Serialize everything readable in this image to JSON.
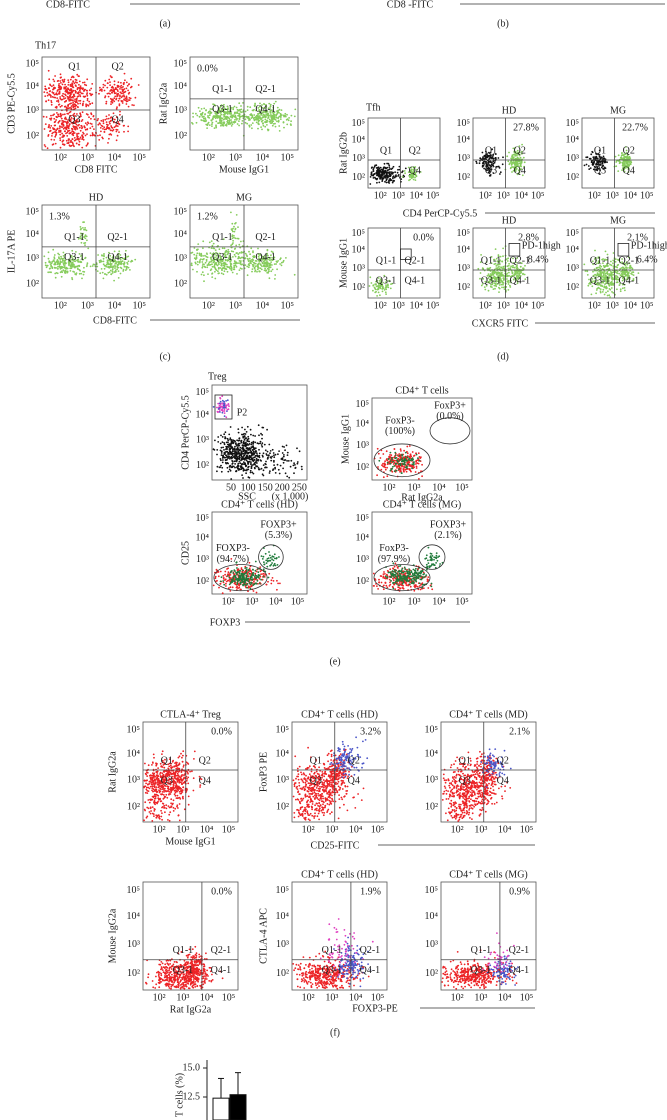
{
  "top": {
    "left_axis": "CD8-FITC",
    "right_axis": "CD8 -FITC",
    "left_label": "(a)",
    "right_label": "(b)"
  },
  "log_ticks": [
    "10²",
    "10³",
    "10⁴",
    "10⁵"
  ],
  "panel_c": {
    "title": "Th17",
    "x_label": "CD8-FITC",
    "label": "(c)",
    "plots": [
      {
        "y_label": "CD3 PE-Cy5.5",
        "x_label": "CD8 FITC",
        "quadrants": {
          "q1": "Q1",
          "q2": "Q2",
          "q3": "Q3",
          "q4": "Q4"
        }
      },
      {
        "y_label": "Rat IgG2a",
        "x_label": "Mouse IgG1",
        "percent": "0.0%",
        "quadrants": {
          "q1": "Q1-1",
          "q2": "Q2-1",
          "q3": "Q3-1",
          "q4": "Q4-1"
        }
      },
      {
        "title": "HD",
        "y_label": "IL-17A PE",
        "percent": "1.3%",
        "quadrants": {
          "q1": "Q1-1",
          "q2": "Q2-1",
          "q3": "Q3-1",
          "q4": "Q4-1"
        }
      },
      {
        "title": "MG",
        "percent": "1.2%",
        "quadrants": {
          "q1": "Q1-1",
          "q2": "Q2-1",
          "q3": "Q3-1",
          "q4": "Q4-1"
        }
      }
    ]
  },
  "panel_d": {
    "title": "Tfh",
    "x_label_top": "CD4 PerCP-Cy5.5",
    "x_label_bottom": "CXCR5 FITC",
    "label": "(d)",
    "plots": [
      {
        "y_label": "Rat IgG2b",
        "quadrants": {
          "q1": "Q1",
          "q2": "Q2",
          "q4": "Q4"
        }
      },
      {
        "title": "HD",
        "percent": "27.8%",
        "quadrants": {
          "q1": "Q1",
          "q2": "Q2",
          "q3": "Q3",
          "q4": "Q4"
        }
      },
      {
        "title": "MG",
        "percent": "22.7%",
        "quadrants": {
          "q1": "Q1",
          "q2": "Q2",
          "q3": "Q3",
          "q4": "Q4"
        }
      },
      {
        "y_label": "Mouse IgG1",
        "percent": "0.0%",
        "quadrants": {
          "q1": "Q1-1",
          "q2": "Q2-1",
          "q3": "Q3-1",
          "q4": "Q4-1"
        }
      },
      {
        "title": "HD",
        "percent": "2.8%",
        "gate_name": "PD-1high",
        "gate_percent": "8.4%",
        "quadrants": {
          "q1": "Q1-1",
          "q2": "Q2-1",
          "q3": "Q3-1",
          "q4": "Q4-1"
        }
      },
      {
        "title": "MG",
        "percent": "2.1%",
        "gate_name": "PD-1high",
        "gate_percent": "6.4%",
        "quadrants": {
          "q1": "Q1-1",
          "q2": "Q2-1",
          "q3": "Q3-1",
          "q4": "Q4-1"
        }
      }
    ]
  },
  "panel_e": {
    "title": "Treg",
    "x_label": "FOXP3",
    "label": "(e)",
    "scatter": {
      "y_label": "CD4 PerCP-Cy5.5",
      "x_label": "SSC",
      "x_unit": "(x 1,000)",
      "gate": "P2",
      "xticks": [
        50,
        100,
        150,
        200,
        250
      ]
    },
    "plots": [
      {
        "title": "CD4⁺ T cells",
        "y_label": "Mouse IgG1",
        "x_label": "Rat IgG2a",
        "neg": [
          "FoxP3-",
          "(100%)"
        ],
        "pos": [
          "FoxP3+",
          "(0.0%)"
        ]
      },
      {
        "title": "CD4⁺ T cells (HD)",
        "y_label": "CD25",
        "neg": [
          "FOXP3-",
          "(94.7%)"
        ],
        "pos": [
          "FOXP3+",
          "(5.3%)"
        ]
      },
      {
        "title": "CD4⁺ T cells (MG)",
        "neg": [
          "FoxP3-",
          "(97.9%)"
        ],
        "pos": [
          "FOXP3+",
          "(2.1%)"
        ]
      }
    ]
  },
  "panel_f": {
    "label": "(f)",
    "x_label_top": "CD25-FITC",
    "x_label_bottom": "FOXP3-PE",
    "plots": [
      {
        "title": "CTLA-4⁺ Treg",
        "y_label": "Rat IgG2a",
        "x_label": "Mouse IgG1",
        "percent": "0.0%",
        "quadrants": {
          "q1": "Q1",
          "q2": "Q2",
          "q3": "Q3",
          "q4": "Q4"
        }
      },
      {
        "title": "CD4⁺ T cells (HD)",
        "y_label": "FoxP3 PE",
        "percent": "3.2%",
        "quadrants": {
          "q1": "Q1",
          "q2": "Q2",
          "q3": "Q3",
          "q4": "Q4"
        }
      },
      {
        "title": "CD4⁺ T cells (MD)",
        "percent": "2.1%",
        "quadrants": {
          "q1": "Q1",
          "q2": "Q2",
          "q3": "Q3",
          "q4": "Q4"
        }
      },
      {
        "y_label": "Mouse IgG2a",
        "x_label": "Rat IgG2a",
        "percent": "0.0%",
        "quadrants": {
          "q1": "Q1-1",
          "q2": "Q2-1",
          "q3": "Q3-1",
          "q4": "Q4-1"
        }
      },
      {
        "title": "CD4⁺ T cells (HD)",
        "y_label": "CTLA-4 APC",
        "percent": "1.9%",
        "quadrants": {
          "q1": "Q1-1",
          "q2": "Q2-1",
          "q3": "Q3-1",
          "q4": "Q4-1"
        }
      },
      {
        "title": "CD4⁺ T cells (MG)",
        "percent": "0.9%",
        "quadrants": {
          "q1": "Q1-1",
          "q2": "Q2-1",
          "q3": "Q3-1",
          "q4": "Q4-1"
        }
      }
    ]
  },
  "panel_g": {
    "y_label": "T cells (%)",
    "yticks": [
      {
        "value": 15,
        "label": "15.0"
      },
      {
        "value": 12.5,
        "label": "12.5"
      }
    ],
    "values": [
      12.4,
      12.7
    ],
    "errors": [
      1.7,
      1.9
    ],
    "colors": [
      "#ffffff",
      "#000000"
    ]
  }
}
